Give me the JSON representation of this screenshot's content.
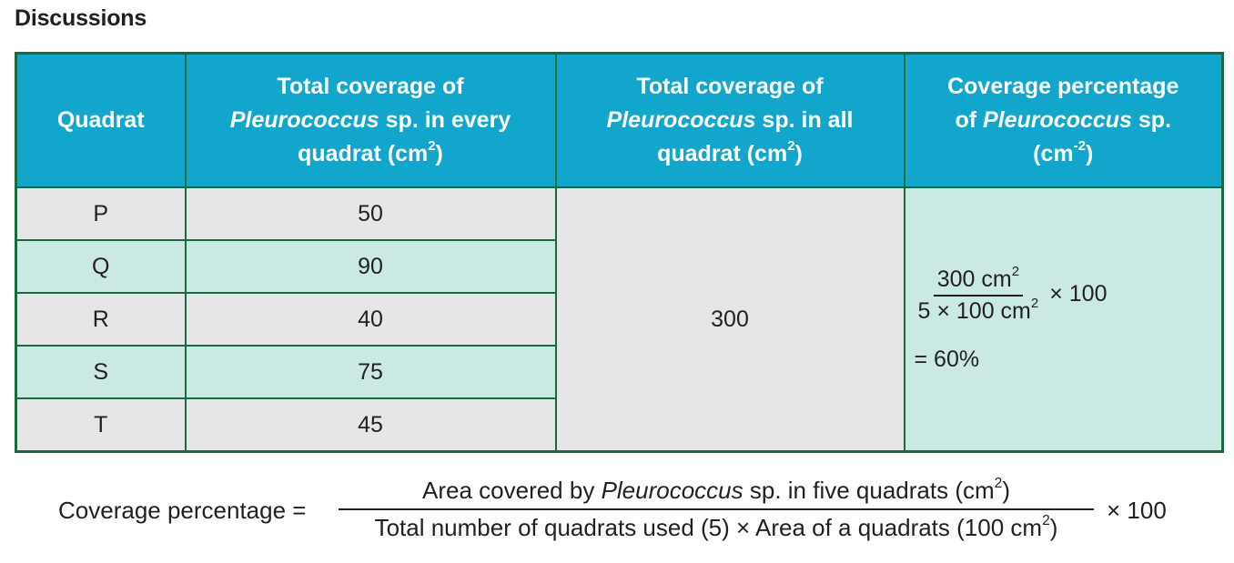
{
  "heading": "Discussions",
  "table": {
    "headers": {
      "col1": "Quadrat",
      "col2_line1": "Total coverage of",
      "col2_italic": "Pleurococcus",
      "col2_line2_rest": " sp. in every",
      "col2_line3": "quadrat (cm",
      "col2_sup": "2",
      "col2_close": ")",
      "col3_line1": "Total coverage of",
      "col3_italic": "Pleurococcus",
      "col3_line2_rest": " sp. in all",
      "col3_line3": "quadrat (cm",
      "col3_sup": "2",
      "col3_close": ")",
      "col4_line1": "Coverage percentage",
      "col4_of": "of ",
      "col4_italic": "Pleurococcus",
      "col4_line2_rest": " sp.",
      "col4_line3": "(cm",
      "col4_sup": "-2",
      "col4_close": ")"
    },
    "rows": [
      {
        "quadrat": "P",
        "coverage": "50"
      },
      {
        "quadrat": "Q",
        "coverage": "90"
      },
      {
        "quadrat": "R",
        "coverage": "40"
      },
      {
        "quadrat": "S",
        "coverage": "75"
      },
      {
        "quadrat": "T",
        "coverage": "45"
      }
    ],
    "total": "300",
    "percentage": {
      "numerator": "300 cm",
      "numerator_sup": "2",
      "denominator": "5 × 100 cm",
      "denominator_sup": "2",
      "times": "× 100",
      "result": "= 60%"
    }
  },
  "formula": {
    "label": "Coverage percentage =",
    "num_pre": "Area covered by ",
    "num_italic": "Pleurococcus",
    "num_post": " sp. in five quadrats (cm",
    "num_sup": "2",
    "num_close": ")",
    "den_text": "Total number of quadrats used (5) × Area of a quadrats (100 cm",
    "den_sup": "2",
    "den_close": ")",
    "times": "× 100"
  },
  "colors": {
    "header_bg": "#12a6cc",
    "border": "#1a6a3f",
    "row_grey": "#e6e6e8",
    "row_teal": "#c9e9e2"
  }
}
